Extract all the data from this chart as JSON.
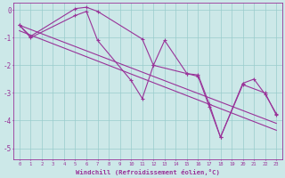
{
  "x_data": [
    0,
    1,
    2,
    3,
    4,
    5,
    6,
    7,
    8,
    9,
    10,
    11,
    12,
    13,
    14,
    15,
    16,
    17,
    18,
    19,
    20,
    21,
    22,
    23
  ],
  "series1_x": [
    0,
    1,
    5,
    6,
    7,
    10,
    11,
    12,
    13,
    15,
    16,
    17,
    18,
    20,
    22,
    23
  ],
  "series1_y": [
    -0.55,
    -1.0,
    -0.2,
    -0.05,
    -1.1,
    -2.55,
    -3.2,
    -2.0,
    -1.1,
    -2.3,
    -2.4,
    -3.5,
    -4.6,
    -2.7,
    -3.0,
    -3.8
  ],
  "series2_x": [
    0,
    1,
    5,
    6,
    7,
    11,
    12,
    15,
    16,
    17,
    18,
    20,
    21,
    22,
    23
  ],
  "series2_y": [
    -0.55,
    -0.95,
    0.05,
    0.1,
    -0.05,
    -1.05,
    -2.0,
    -2.3,
    -2.35,
    -3.4,
    -4.6,
    -2.65,
    -2.5,
    -3.05,
    -3.75
  ],
  "trend1_x": [
    0,
    23
  ],
  "trend1_y": [
    -0.55,
    -4.1
  ],
  "trend2_x": [
    0,
    23
  ],
  "trend2_y": [
    -0.75,
    -4.35
  ],
  "color": "#993399",
  "bg_color": "#cce8e8",
  "grid_color": "#99cccc",
  "xlabel": "Windchill (Refroidissement éolien,°C)",
  "ylim": [
    -5.4,
    0.25
  ],
  "xlim": [
    -0.5,
    23.5
  ],
  "yticks": [
    0,
    -1,
    -2,
    -3,
    -4,
    -5
  ],
  "xticks": [
    0,
    1,
    2,
    3,
    4,
    5,
    6,
    7,
    8,
    9,
    10,
    11,
    12,
    13,
    14,
    15,
    16,
    17,
    18,
    19,
    20,
    21,
    22,
    23
  ]
}
